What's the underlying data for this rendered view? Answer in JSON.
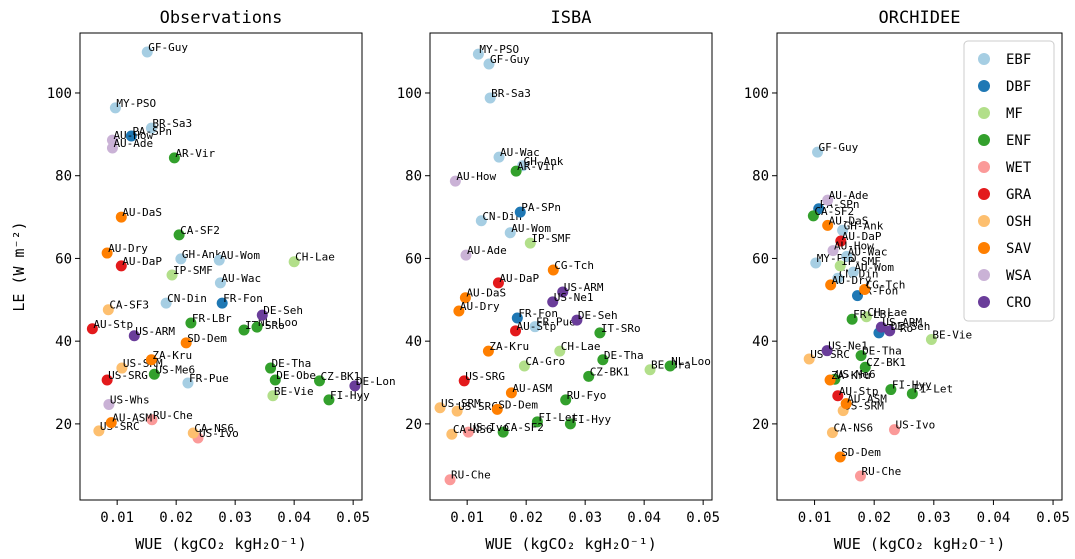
{
  "chart_data": [
    {
      "type": "scatter",
      "title": "Observations",
      "x_label": "WUE (kgCO₂ kgH₂O⁻¹)",
      "y_label": "LE (W m⁻²)",
      "xlim": [
        0.0037,
        0.0515
      ],
      "ylim": [
        1.6,
        114.5
      ],
      "xticks": [
        0.01,
        0.02,
        0.03,
        0.04,
        0.05
      ],
      "yticks": [
        20,
        40,
        60,
        80,
        100
      ],
      "series": [
        {
          "color": "#a6cee3",
          "labels": [
            "GF-Guy",
            "MY-PSO",
            "BR-Sa3",
            "GH-Ank",
            "AU-Wom",
            "AU-Wac",
            "CN-Din",
            "FR-Pue"
          ],
          "x": [
            0.0151,
            0.0097,
            0.0158,
            0.0208,
            0.0273,
            0.0275,
            0.0183,
            0.022
          ],
          "values": [
            109.9,
            96.4,
            91.5,
            59.9,
            59.6,
            54.1,
            49.2,
            29.9
          ]
        },
        {
          "color": "#1f78b4",
          "labels": [
            "PA-SPn",
            "FR-Fon"
          ],
          "x": [
            0.0124,
            0.0278
          ],
          "values": [
            89.6,
            49.2
          ]
        },
        {
          "color": "#b2df8a",
          "labels": [
            "CH-Lae",
            "IP-SMF",
            "BE-Vie"
          ],
          "x": [
            0.04,
            0.0193,
            0.0364
          ],
          "values": [
            59.2,
            56.0,
            26.8
          ]
        },
        {
          "color": "#33a02c",
          "labels": [
            "AR-Vir",
            "CA-SF2",
            "FR-LBr",
            "IT-SRo",
            "NL-Loo",
            "DE-Tha",
            "CZ-BK1",
            "FI-Hyy",
            "DE-Obe",
            "US-Me6"
          ],
          "x": [
            0.0197,
            0.0205,
            0.0225,
            0.0315,
            0.0337,
            0.036,
            0.0443,
            0.0459,
            0.0368,
            0.0163
          ],
          "values": [
            84.3,
            65.7,
            44.4,
            42.7,
            43.4,
            33.5,
            30.4,
            25.8,
            30.6,
            32.0
          ]
        },
        {
          "color": "#fb9a99",
          "labels": [
            "RU-Che",
            "US-Ivo"
          ],
          "x": [
            0.0159,
            0.0237
          ],
          "values": [
            21.0,
            16.6
          ]
        },
        {
          "color": "#e31a1c",
          "labels": [
            "AU-DaP",
            "AU-Stp",
            "US-SRG"
          ],
          "x": [
            0.0107,
            0.0058,
            0.0083
          ],
          "values": [
            58.2,
            43.0,
            30.6
          ]
        },
        {
          "color": "#fdbf6f",
          "labels": [
            "CA-SF3",
            "US-SRC",
            "CA-NS6",
            "US-SRM"
          ],
          "x": [
            0.0085,
            0.0069,
            0.0229,
            0.0108
          ],
          "values": [
            47.6,
            18.3,
            17.8,
            33.5
          ]
        },
        {
          "color": "#ff7f00",
          "labels": [
            "AU-DaS",
            "AU-Dry",
            "SD-Dem",
            "ZA-Kru",
            "AU-ASM"
          ],
          "x": [
            0.0107,
            0.0083,
            0.0217,
            0.0158,
            0.009
          ],
          "values": [
            70.0,
            61.3,
            39.6,
            35.5,
            20.3
          ]
        },
        {
          "color": "#cab2d6",
          "labels": [
            "AU-How",
            "AU-Ade",
            "US-Whs"
          ],
          "x": [
            0.0092,
            0.0092,
            0.0086
          ],
          "values": [
            88.6,
            86.7,
            24.7
          ]
        },
        {
          "color": "#6a3d9a",
          "labels": [
            "DE-Seh",
            "US-ARM",
            "DE-Lon"
          ],
          "x": [
            0.0346,
            0.0129,
            0.0503
          ],
          "values": [
            46.3,
            41.3,
            29.2
          ]
        }
      ]
    },
    {
      "type": "scatter",
      "title": "ISBA",
      "x_label": "WUE (kgCO₂ kgH₂O⁻¹)",
      "xlim": [
        0.0037,
        0.0515
      ],
      "ylim": [
        1.6,
        114.5
      ],
      "xticks": [
        0.01,
        0.02,
        0.03,
        0.04,
        0.05
      ],
      "yticks": [
        20,
        40,
        60,
        80,
        100
      ],
      "series": [
        {
          "color": "#a6cee3",
          "labels": [
            "MY-PSO",
            "GF-Guy",
            "BR-Sa3",
            "AU-Wac",
            "GH-Ank",
            "CN-Din",
            "AU-Wom",
            "FR-Pue"
          ],
          "x": [
            0.0119,
            0.0137,
            0.0139,
            0.0154,
            0.0194,
            0.0124,
            0.0173,
            0.0215
          ],
          "values": [
            109.4,
            107.0,
            98.8,
            84.5,
            82.4,
            69.1,
            66.2,
            43.5
          ]
        },
        {
          "color": "#1f78b4",
          "labels": [
            "PA-SPn",
            "FR-Fon"
          ],
          "x": [
            0.019,
            0.0185
          ],
          "values": [
            71.2,
            45.6
          ]
        },
        {
          "color": "#b2df8a",
          "labels": [
            "IP-SMF",
            "CH-Lae",
            "CA-Gro",
            "BE-Bra"
          ],
          "x": [
            0.0207,
            0.0257,
            0.0197,
            0.041
          ],
          "values": [
            63.7,
            37.6,
            34.0,
            33.1
          ]
        },
        {
          "color": "#33a02c",
          "labels": [
            "AR-Vir",
            "IT-SRo",
            "NL-Loo",
            "CZ-BK1",
            "RU-Fyo",
            "FI-Hyy",
            "FI-Let",
            "CA-SF2",
            "DE-Tha"
          ],
          "x": [
            0.0183,
            0.0325,
            0.0444,
            0.0306,
            0.0267,
            0.0275,
            0.0219,
            0.0161,
            0.033
          ],
          "values": [
            81.1,
            42.0,
            34.0,
            31.5,
            25.8,
            20.0,
            20.5,
            18.0,
            35.5
          ]
        },
        {
          "color": "#fb9a99",
          "labels": [
            "RU-Che",
            "US-Ivo"
          ],
          "x": [
            0.0071,
            0.0102
          ],
          "values": [
            6.5,
            18.0
          ]
        },
        {
          "color": "#e31a1c",
          "labels": [
            "AU-DaP",
            "AU-Stp",
            "US-SRG"
          ],
          "x": [
            0.0153,
            0.0182,
            0.0095
          ],
          "values": [
            54.1,
            42.5,
            30.4
          ]
        },
        {
          "color": "#fdbf6f",
          "labels": [
            "US-SRM",
            "CA-NS6",
            "US-SRC"
          ],
          "x": [
            0.0054,
            0.0074,
            0.0083
          ],
          "values": [
            23.9,
            17.5,
            23.1
          ]
        },
        {
          "color": "#ff7f00",
          "labels": [
            "CG-Tch",
            "AU-DaS",
            "AU-Dry",
            "ZA-Kru",
            "SD-Dem",
            "AU-ASM"
          ],
          "x": [
            0.0246,
            0.0097,
            0.0086,
            0.0136,
            0.0151,
            0.0175
          ],
          "values": [
            57.2,
            50.5,
            47.3,
            37.6,
            23.5,
            27.5
          ]
        },
        {
          "color": "#cab2d6",
          "labels": [
            "AU-How",
            "AU-Ade"
          ],
          "x": [
            0.008,
            0.0098
          ],
          "values": [
            78.7,
            60.8
          ]
        },
        {
          "color": "#6a3d9a",
          "labels": [
            "US-ARM",
            "DE-Seh",
            "US-Ne1"
          ],
          "x": [
            0.0262,
            0.0286,
            0.0245
          ],
          "values": [
            51.9,
            45.1,
            49.5
          ]
        }
      ]
    },
    {
      "type": "scatter",
      "title": "ORCHIDEE",
      "x_label": "WUE (kgCO₂ kgH₂O⁻¹)",
      "legend": "upper right",
      "xlim": [
        0.0037,
        0.0515
      ],
      "ylim": [
        1.6,
        114.5
      ],
      "xticks": [
        0.01,
        0.02,
        0.03,
        0.04,
        0.05
      ],
      "yticks": [
        20,
        40,
        60,
        80,
        100
      ],
      "series": [
        {
          "name": "EBF",
          "color": "#a6cee3",
          "labels": [
            "GF-Guy",
            "GH-Ank",
            "MY-PSO",
            "CN-Din",
            "AU-Wom",
            "AU-Wac"
          ],
          "x": [
            0.0105,
            0.0147,
            0.0102,
            0.0139,
            0.0165,
            0.0154
          ],
          "values": [
            85.7,
            66.8,
            58.9,
            55.2,
            56.7,
            60.5
          ]
        },
        {
          "name": "DBF",
          "color": "#1f78b4",
          "labels": [
            "PA-SPn",
            "FR-Fon",
            "IT-Ro"
          ],
          "x": [
            0.0107,
            0.0172,
            0.0208
          ],
          "values": [
            72.0,
            51.0,
            42.0
          ]
        },
        {
          "name": "MF",
          "color": "#b2df8a",
          "labels": [
            "IP-SMF",
            "CH-Lae",
            "BE-Vie"
          ],
          "x": [
            0.0143,
            0.0187,
            0.0296
          ],
          "values": [
            58.2,
            45.9,
            40.4
          ]
        },
        {
          "name": "ENF",
          "color": "#33a02c",
          "labels": [
            "CA-SF2",
            "FI-Let",
            "FI-Hyy",
            "DE-Tha",
            "CZ-BK1",
            "US-Me6",
            "FR-LBr"
          ],
          "x": [
            0.0098,
            0.0264,
            0.0228,
            0.0178,
            0.0185,
            0.0134,
            0.0163
          ],
          "values": [
            70.3,
            27.3,
            28.3,
            36.5,
            33.7,
            30.8,
            45.3
          ]
        },
        {
          "name": "WET",
          "color": "#fb9a99",
          "labels": [
            "US-Ivo",
            "RU-Che"
          ],
          "x": [
            0.0234,
            0.0177
          ],
          "values": [
            18.6,
            7.4
          ]
        },
        {
          "name": "GRA",
          "color": "#e31a1c",
          "labels": [
            "AU-DaP",
            "AU-Stp"
          ],
          "x": [
            0.0144,
            0.0139
          ],
          "values": [
            64.2,
            26.8
          ]
        },
        {
          "name": "OSH",
          "color": "#fdbf6f",
          "labels": [
            "US-SRC",
            "CA-NS6",
            "US-SRM"
          ],
          "x": [
            0.0091,
            0.013,
            0.0148
          ],
          "values": [
            35.7,
            17.9,
            23.2
          ]
        },
        {
          "name": "SAV",
          "color": "#ff7f00",
          "labels": [
            "AU-DaS",
            "CG-Tch",
            "ZA-Kru",
            "AU-ASM",
            "SD-Dem",
            "AU-Dry"
          ],
          "x": [
            0.0122,
            0.0184,
            0.0126,
            0.0153,
            0.0143,
            0.0127
          ],
          "values": [
            68.0,
            52.5,
            30.6,
            24.9,
            12.0,
            53.6
          ]
        },
        {
          "name": "WSA",
          "color": "#cab2d6",
          "labels": [
            "AU-Ade",
            "AU-How"
          ],
          "x": [
            0.0122,
            0.0131
          ],
          "values": [
            74.1,
            61.9
          ]
        },
        {
          "name": "CRO",
          "color": "#6a3d9a",
          "labels": [
            "US-ARM",
            "US-Ne1",
            "DE-Seh"
          ],
          "x": [
            0.0212,
            0.0121,
            0.0226
          ],
          "values": [
            43.4,
            37.7,
            42.5
          ]
        }
      ]
    }
  ]
}
